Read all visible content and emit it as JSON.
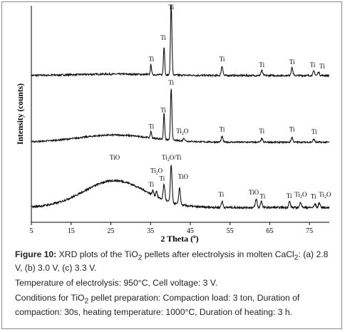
{
  "chart_data": {
    "type": "line",
    "xlabel": "2 Theta (°)",
    "xlabel_main": "2 Theta",
    "xlabel_unit": "(",
    "xlabel_unit_deg": "o",
    "xlabel_unit_close": ")",
    "ylabel": "Intensity (counts)",
    "xlim": [
      5,
      80
    ],
    "xticks": [
      5,
      15,
      25,
      35,
      45,
      55,
      65,
      75
    ],
    "stack_order": [
      "(a) 2.8 V",
      "(b) 3.0 V",
      "(c) 3.3 V"
    ],
    "series": [
      {
        "baseline": 0.1,
        "noise": 0.012,
        "hump": {
          "center": 26,
          "width": 14,
          "height": 0.02
        },
        "peaks": [
          [
            35.1,
            0.14,
            0.22
          ],
          [
            38.4,
            0.4,
            0.22
          ],
          [
            40.2,
            1.0,
            0.25
          ],
          [
            53.0,
            0.13,
            0.3
          ],
          [
            63.0,
            0.07,
            0.3
          ],
          [
            70.6,
            0.11,
            0.3
          ],
          [
            76.1,
            0.06,
            0.3
          ],
          [
            77.3,
            0.05,
            0.3
          ]
        ],
        "labels": [
          {
            "text": "Ti",
            "x": 40.2,
            "y": 1.03
          },
          {
            "text": "Ti",
            "x": 38.2,
            "y": 0.6
          },
          {
            "text": "Ti",
            "x": 35.2,
            "y": 0.3
          },
          {
            "text": "Ti",
            "x": 53.0,
            "y": 0.3
          },
          {
            "text": "Ti",
            "x": 63.0,
            "y": 0.22
          },
          {
            "text": "Ti",
            "x": 70.6,
            "y": 0.26
          },
          {
            "text": "Ti",
            "x": 75.8,
            "y": 0.22
          },
          {
            "text": "Ti",
            "x": 78.2,
            "y": 0.2
          }
        ]
      },
      {
        "baseline": 0.1,
        "noise": 0.012,
        "hump": {
          "center": 26,
          "width": 13,
          "height": 0.12
        },
        "peaks": [
          [
            35.1,
            0.11,
            0.22
          ],
          [
            38.4,
            0.43,
            0.22
          ],
          [
            40.2,
            0.86,
            0.25
          ],
          [
            43.4,
            0.05,
            0.3
          ],
          [
            53.0,
            0.09,
            0.3
          ],
          [
            63.0,
            0.06,
            0.3
          ],
          [
            70.6,
            0.08,
            0.3
          ],
          [
            76.1,
            0.05,
            0.3
          ]
        ],
        "labels": [
          {
            "text": "Ti",
            "x": 40.2,
            "y": 1.06
          },
          {
            "text": "Ti",
            "x": 38.2,
            "y": 0.6
          },
          {
            "text": "Ti",
            "x": 35.2,
            "y": 0.33
          },
          {
            "text": "Ti",
            "x": 43.0,
            "y": 0.25,
            "sub": "2",
            "tail": "O"
          },
          {
            "text": "Ti",
            "x": 53.0,
            "y": 0.28
          },
          {
            "text": "Ti",
            "x": 63.0,
            "y": 0.25
          },
          {
            "text": "Ti",
            "x": 70.6,
            "y": 0.28
          },
          {
            "text": "Ti",
            "x": 76.2,
            "y": 0.24
          }
        ]
      },
      {
        "baseline": 0.08,
        "noise": 0.016,
        "hump": {
          "center": 26,
          "width": 11,
          "height": 0.45
        },
        "peaks": [
          [
            35.6,
            0.08,
            0.25
          ],
          [
            36.5,
            0.1,
            0.25
          ],
          [
            38.4,
            0.26,
            0.3
          ],
          [
            40.2,
            0.62,
            0.3
          ],
          [
            42.3,
            0.28,
            0.3
          ],
          [
            53.0,
            0.1,
            0.3
          ],
          [
            61.6,
            0.14,
            0.3
          ],
          [
            62.9,
            0.11,
            0.3
          ],
          [
            70.0,
            0.1,
            0.3
          ],
          [
            72.8,
            0.09,
            0.3
          ],
          [
            76.4,
            0.06,
            0.3
          ],
          [
            77.5,
            0.08,
            0.3
          ]
        ],
        "labels": [
          {
            "text": "TiO",
            "x": 26.0,
            "y": 0.88
          },
          {
            "text": "Ti",
            "x": 40.3,
            "y": 0.88,
            "sub": "2",
            "tail": "O/Ti"
          },
          {
            "text": "Ti",
            "x": 36.5,
            "y": 0.66,
            "sub": "2",
            "tail": "O"
          },
          {
            "text": "Ti",
            "x": 37.9,
            "y": 0.53
          },
          {
            "text": "Ti",
            "x": 35.2,
            "y": 0.43
          },
          {
            "text": "TiO",
            "x": 43.2,
            "y": 0.56
          },
          {
            "text": "Ti",
            "x": 52.8,
            "y": 0.26
          },
          {
            "text": "TiO",
            "x": 61.0,
            "y": 0.3
          },
          {
            "text": "Ti",
            "x": 63.2,
            "y": 0.23
          },
          {
            "text": "Ti",
            "x": 69.9,
            "y": 0.24
          },
          {
            "text": "Ti",
            "x": 72.8,
            "y": 0.26,
            "sub": "2",
            "tail": "O"
          },
          {
            "text": "Ti",
            "x": 76.0,
            "y": 0.23
          },
          {
            "text": "Ti",
            "x": 78.9,
            "y": 0.26,
            "sub": "2",
            "tail": "O"
          }
        ]
      }
    ]
  },
  "caption": {
    "fig_label": "Figure 10:",
    "line1_a": " XRD plots of the TiO",
    "line1_sub": "2",
    "line1_b": " pellets after electrolysis in molten CaCl",
    "line1_sub2": "2",
    "line1_c": ": (a) 2.8 V, (b) 3.0 V, (c) 3.3 V.",
    "line2": "Temperature of electrolysis: 950°C, Cell voltage: 3 V.",
    "line3_a": "Conditions for TiO",
    "line3_sub": "2",
    "line3_b": " pellet preparation: Compaction load: 3 ton, Duration of compaction: 30s, heating temperature: 1000°C, Duration of heating: 3 h."
  }
}
